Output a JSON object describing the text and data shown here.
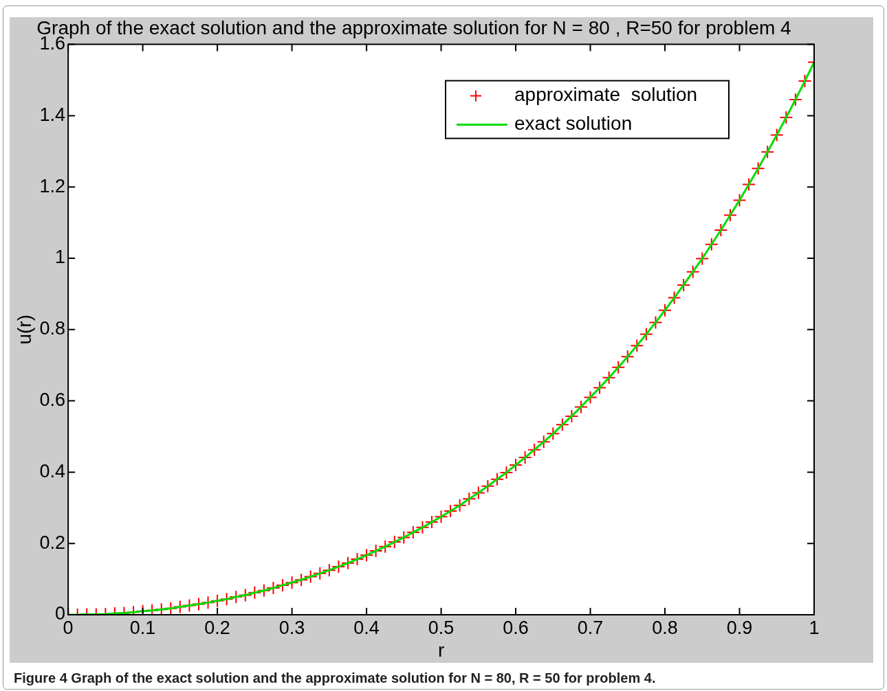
{
  "chart_data": {
    "type": "line",
    "title": "Graph of the exact solution and the approximate solution for N = 80 , R=50 for problem 4",
    "xlabel": "r",
    "ylabel": "u(r)",
    "annotations": [
      "Figure 4 Graph of the exact solution and the approximate solution for N = 80, R = 50 for problem 4."
    ],
    "x": [
      0,
      0.0125,
      0.025,
      0.0375,
      0.05,
      0.0625,
      0.075,
      0.0875,
      0.1,
      0.1125,
      0.125,
      0.1375,
      0.15,
      0.1625,
      0.175,
      0.1875,
      0.2,
      0.2125,
      0.225,
      0.2375,
      0.25,
      0.2625,
      0.275,
      0.2875,
      0.3,
      0.3125,
      0.325,
      0.3375,
      0.35,
      0.3625,
      0.375,
      0.3875,
      0.4,
      0.4125,
      0.425,
      0.4375,
      0.45,
      0.4625,
      0.475,
      0.4875,
      0.5,
      0.5125,
      0.525,
      0.5375,
      0.55,
      0.5625,
      0.575,
      0.5875,
      0.6,
      0.6125,
      0.625,
      0.6375,
      0.65,
      0.6625,
      0.675,
      0.6875,
      0.7,
      0.7125,
      0.725,
      0.7375,
      0.75,
      0.7625,
      0.775,
      0.7875,
      0.8,
      0.8125,
      0.825,
      0.8375,
      0.85,
      0.8625,
      0.875,
      0.8875,
      0.9,
      0.9125,
      0.925,
      0.9375,
      0.95,
      0.9625,
      0.975,
      0.9875,
      1
    ],
    "series": [
      {
        "name": "approximate  solution",
        "type": "scatter",
        "marker": "cross",
        "color": "#ff0000",
        "values": [
          0,
          0,
          0.001,
          0.001,
          0.002,
          0.004,
          0.005,
          0.007,
          0.01,
          0.012,
          0.015,
          0.018,
          0.022,
          0.026,
          0.03,
          0.034,
          0.039,
          0.044,
          0.05,
          0.055,
          0.062,
          0.068,
          0.075,
          0.083,
          0.09,
          0.098,
          0.107,
          0.116,
          0.125,
          0.135,
          0.145,
          0.156,
          0.167,
          0.179,
          0.191,
          0.204,
          0.217,
          0.231,
          0.245,
          0.26,
          0.275,
          0.291,
          0.307,
          0.325,
          0.342,
          0.361,
          0.38,
          0.399,
          0.42,
          0.441,
          0.463,
          0.485,
          0.508,
          0.533,
          0.557,
          0.583,
          0.61,
          0.637,
          0.665,
          0.694,
          0.724,
          0.755,
          0.787,
          0.82,
          0.854,
          0.889,
          0.925,
          0.962,
          0.999,
          1.039,
          1.079,
          1.121,
          1.163,
          1.207,
          1.252,
          1.298,
          1.346,
          1.395,
          1.445,
          1.497,
          1.55
        ]
      },
      {
        "name": "exact solution",
        "marker": "none",
        "color": "#00dd00",
        "values": [
          0,
          0,
          0.001,
          0.001,
          0.002,
          0.004,
          0.005,
          0.007,
          0.01,
          0.012,
          0.015,
          0.018,
          0.022,
          0.026,
          0.03,
          0.034,
          0.039,
          0.044,
          0.05,
          0.055,
          0.062,
          0.068,
          0.075,
          0.083,
          0.09,
          0.098,
          0.107,
          0.116,
          0.125,
          0.135,
          0.145,
          0.156,
          0.167,
          0.179,
          0.191,
          0.204,
          0.217,
          0.231,
          0.245,
          0.26,
          0.275,
          0.291,
          0.307,
          0.325,
          0.342,
          0.361,
          0.38,
          0.399,
          0.42,
          0.441,
          0.463,
          0.485,
          0.508,
          0.533,
          0.557,
          0.583,
          0.61,
          0.637,
          0.665,
          0.694,
          0.724,
          0.755,
          0.787,
          0.82,
          0.854,
          0.889,
          0.925,
          0.962,
          0.999,
          1.039,
          1.079,
          1.121,
          1.163,
          1.207,
          1.252,
          1.298,
          1.346,
          1.395,
          1.445,
          1.497,
          1.55
        ]
      }
    ],
    "xlim": [
      0,
      1
    ],
    "xticks": [
      0,
      0.1,
      0.2,
      0.3,
      0.4,
      0.5,
      0.6,
      0.7,
      0.8,
      0.9,
      1
    ],
    "ylim": [
      0,
      1.6
    ],
    "yticks": [
      0,
      0.2,
      0.4,
      0.6,
      0.8,
      1,
      1.2,
      1.4,
      1.6
    ],
    "grid": false,
    "legend": "top right",
    "line_style": "solid"
  }
}
